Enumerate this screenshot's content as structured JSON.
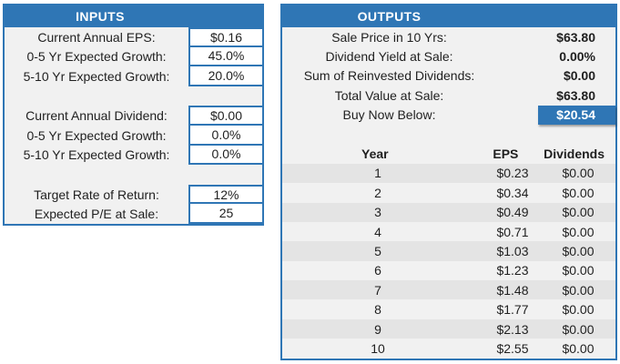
{
  "colors": {
    "accent_blue": "#2F76B5",
    "panel_background": "#F1F1F1",
    "alternate_row": "#E4E4E4",
    "highlight_text": "#FFFFFF"
  },
  "inputs": {
    "title": "INPUTS",
    "rows": [
      {
        "label": "Current Annual EPS:",
        "value": "$0.16"
      },
      {
        "label": "0-5 Yr Expected Growth:",
        "value": "45.0%"
      },
      {
        "label": "5-10 Yr Expected Growth:",
        "value": "20.0%"
      },
      {
        "label": "Current Annual Dividend:",
        "value": "$0.00"
      },
      {
        "label": "0-5 Yr Expected Growth:",
        "value": "0.0%"
      },
      {
        "label": "5-10 Yr Expected Growth:",
        "value": "0.0%"
      },
      {
        "label": "Target Rate of Return:",
        "value": "12%"
      },
      {
        "label": "Expected P/E at Sale:",
        "value": "25"
      }
    ]
  },
  "outputs": {
    "title": "OUTPUTS",
    "rows": [
      {
        "label": "Sale Price in 10 Yrs:",
        "value": "$63.80"
      },
      {
        "label": "Dividend Yield at Sale:",
        "value": "0.00%"
      },
      {
        "label": "Sum of Reinvested Dividends:",
        "value": "$0.00"
      },
      {
        "label": "Total Value at Sale:",
        "value": "$63.80"
      },
      {
        "label": "Buy Now Below:",
        "value": "$20.54"
      }
    ],
    "table": {
      "headers": {
        "year": "Year",
        "eps": "EPS",
        "dividends": "Dividends"
      },
      "rows": [
        {
          "year": "1",
          "eps": "$0.23",
          "dividends": "$0.00"
        },
        {
          "year": "2",
          "eps": "$0.34",
          "dividends": "$0.00"
        },
        {
          "year": "3",
          "eps": "$0.49",
          "dividends": "$0.00"
        },
        {
          "year": "4",
          "eps": "$0.71",
          "dividends": "$0.00"
        },
        {
          "year": "5",
          "eps": "$1.03",
          "dividends": "$0.00"
        },
        {
          "year": "6",
          "eps": "$1.23",
          "dividends": "$0.00"
        },
        {
          "year": "7",
          "eps": "$1.48",
          "dividends": "$0.00"
        },
        {
          "year": "8",
          "eps": "$1.77",
          "dividends": "$0.00"
        },
        {
          "year": "9",
          "eps": "$2.13",
          "dividends": "$0.00"
        },
        {
          "year": "10",
          "eps": "$2.55",
          "dividends": "$0.00"
        }
      ]
    }
  }
}
